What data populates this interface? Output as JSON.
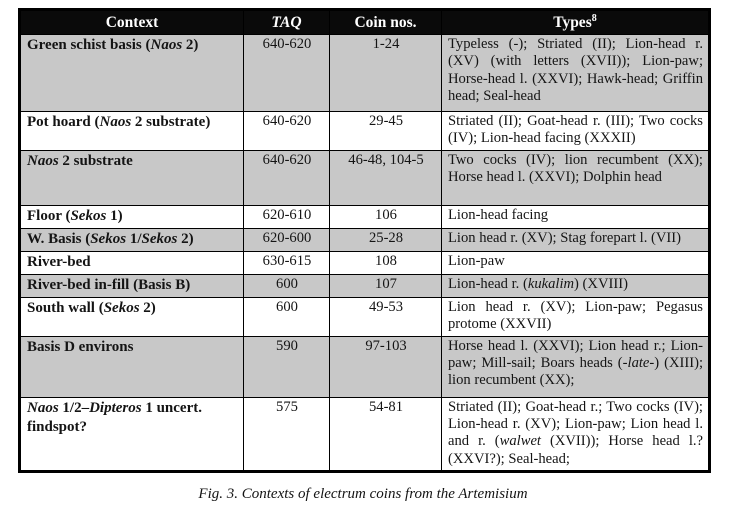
{
  "page": {
    "caption": "Fig. 3. Contexts of electrum coins from the Artemisium"
  },
  "table": {
    "colors": {
      "header_bg": "#0a0a0a",
      "header_text": "#ffffff",
      "shaded_row_bg": "#c8c8c8",
      "border": "#000000",
      "text": "#141414"
    },
    "header": {
      "context": "Context",
      "taq": "TAQ",
      "coins": "Coin nos.",
      "types": "Types",
      "types_footnote": "8"
    },
    "rows": [
      {
        "shaded": true,
        "context": [
          {
            "t": "Green schist basis ("
          },
          {
            "t": "Naos",
            "i": true
          },
          {
            "t": " 2)"
          }
        ],
        "taq": "640-620",
        "coins": "1-24",
        "types": [
          {
            "t": "Typeless (-); Striated (II); Lion-head r. (XV) (with letters (XVII)); Lion-paw; Horse-head l. (XXVI); Hawk-head; Griffin head; Seal-head"
          }
        ]
      },
      {
        "shaded": false,
        "context": [
          {
            "t": "Pot hoard ("
          },
          {
            "t": "Naos",
            "i": true
          },
          {
            "t": " 2 substrate)"
          }
        ],
        "taq": "640-620",
        "coins": "29-45",
        "types": [
          {
            "t": "Striated (II); Goat-head r. (III); Two cocks (IV); Lion-head facing (XXXII)"
          }
        ]
      },
      {
        "shaded": true,
        "context": [
          {
            "t": "Naos",
            "i": true
          },
          {
            "t": " 2 substrate"
          }
        ],
        "taq": "640-620",
        "coins": "46-48, 104-5",
        "types": [
          {
            "t": "Two cocks (IV); lion recumbent (XX); Horse head l. (XXVI); Dolphin head"
          }
        ]
      },
      {
        "shaded": false,
        "context": [
          {
            "t": "Floor ("
          },
          {
            "t": "Sekos",
            "i": true
          },
          {
            "t": " 1)"
          }
        ],
        "taq": "620-610",
        "coins": "106",
        "types": [
          {
            "t": "Lion-head facing"
          }
        ]
      },
      {
        "shaded": true,
        "context": [
          {
            "t": "W. Basis ("
          },
          {
            "t": "Sekos",
            "i": true
          },
          {
            "t": " 1/"
          },
          {
            "t": "Sekos",
            "i": true
          },
          {
            "t": " 2)"
          }
        ],
        "taq": "620-600",
        "coins": "25-28",
        "types": [
          {
            "t": "Lion head r. (XV); Stag forepart l. (VII)"
          }
        ]
      },
      {
        "shaded": false,
        "context": [
          {
            "t": "River-bed"
          }
        ],
        "taq": "630-615",
        "coins": "108",
        "types": [
          {
            "t": "Lion-paw"
          }
        ]
      },
      {
        "shaded": true,
        "context": [
          {
            "t": "River-bed in-fill (Basis B)"
          }
        ],
        "taq": "600",
        "coins": "107",
        "types": [
          {
            "t": "Lion-head r. ("
          },
          {
            "t": "kukalim",
            "i": true
          },
          {
            "t": ") (XVIII)"
          }
        ]
      },
      {
        "shaded": false,
        "context": [
          {
            "t": "South wall ("
          },
          {
            "t": "Sekos",
            "i": true
          },
          {
            "t": " 2)"
          }
        ],
        "taq": "600",
        "coins": "49-53",
        "types": [
          {
            "t": "Lion head r. (XV); Lion-paw; Pegasus protome (XXVII)"
          }
        ]
      },
      {
        "shaded": true,
        "context": [
          {
            "t": "Basis D environs"
          }
        ],
        "taq": "590",
        "coins": "97-103",
        "types": [
          {
            "t": "Horse head l. (XXVI); Lion head r.; Lion-paw; Mill-sail; Boars heads (-"
          },
          {
            "t": "late",
            "i": true
          },
          {
            "t": "-) (XIII); lion recumbent (XX);"
          }
        ]
      },
      {
        "shaded": false,
        "context": [
          {
            "t": "Naos",
            "i": true
          },
          {
            "t": " 1/2–"
          },
          {
            "t": "Dipteros",
            "i": true
          },
          {
            "t": " 1 uncert. findspot?"
          }
        ],
        "taq": "575",
        "coins": "54-81",
        "types": [
          {
            "t": "Striated (II); Goat-head r.; Two cocks (IV); Lion-head r. (XV); Lion-paw; Lion head l. and r. ("
          },
          {
            "t": "walwet",
            "i": true
          },
          {
            "t": " (XVII)); Horse head l.? (XXVI?); Seal-head;"
          }
        ]
      }
    ]
  }
}
